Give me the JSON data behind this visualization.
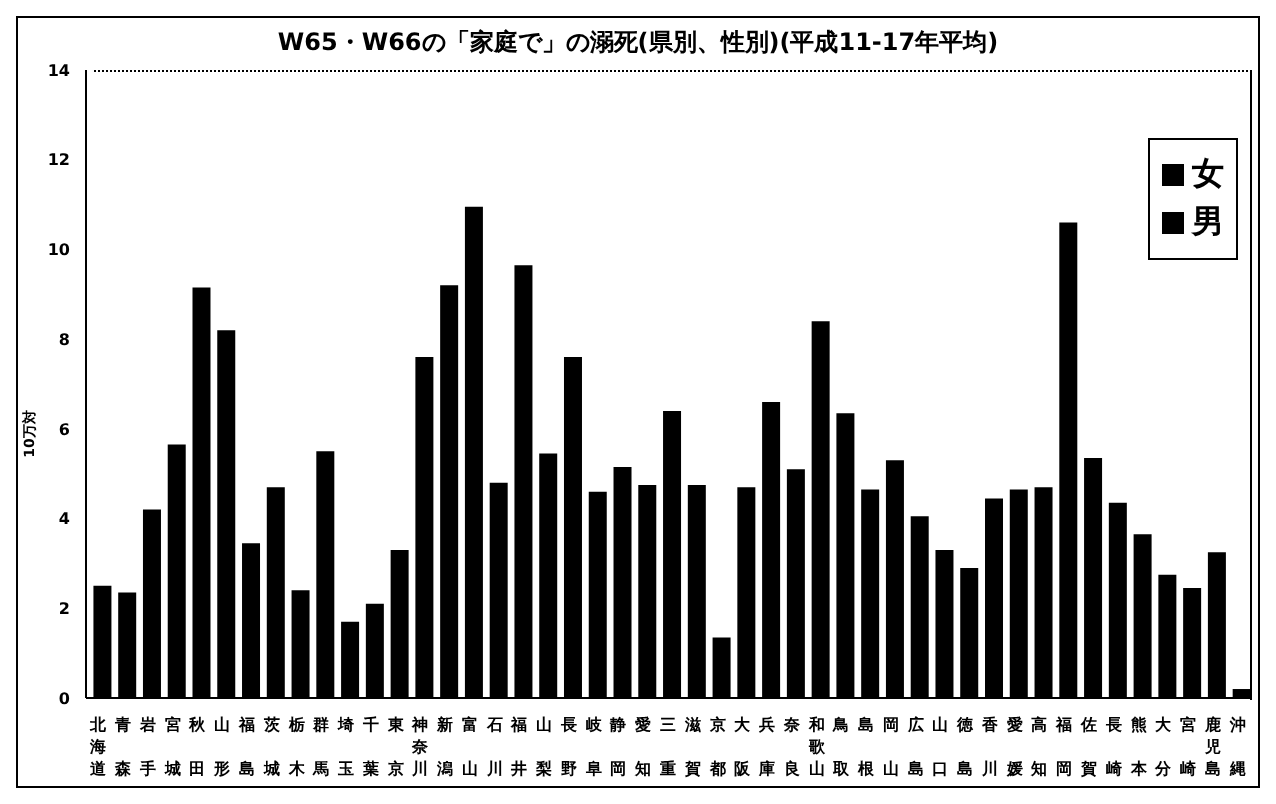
{
  "chart_data": {
    "type": "bar",
    "title": "W65・W66の「家庭で」の溺死(県別、性別)(平成11-17年平均)",
    "ylabel": "10万対",
    "categories": [
      "北海道",
      "青森",
      "岩手",
      "宮城",
      "秋田",
      "山形",
      "福島",
      "茨城",
      "栃木",
      "群馬",
      "埼玉",
      "千葉",
      "東京",
      "神奈川",
      "新潟",
      "富山",
      "石川",
      "福井",
      "山梨",
      "長野",
      "岐阜",
      "静岡",
      "愛知",
      "三重",
      "滋賀",
      "京都",
      "大阪",
      "兵庫",
      "奈良",
      "和歌山",
      "鳥取",
      "島根",
      "岡山",
      "広島",
      "山口",
      "徳島",
      "香川",
      "愛媛",
      "高知",
      "福岡",
      "佐賀",
      "長崎",
      "熊本",
      "大分",
      "宮崎",
      "鹿児島",
      "沖縄"
    ],
    "series": [
      {
        "name": "女",
        "color": "#000000",
        "values": [
          2.5,
          2.35,
          4.2,
          5.65,
          9.15,
          8.2,
          3.45,
          4.7,
          2.4,
          5.5,
          1.7,
          2.1,
          3.3,
          7.6,
          9.2,
          10.95,
          4.8,
          9.65,
          5.45,
          7.6,
          4.6,
          5.15,
          4.75,
          6.4,
          4.75,
          1.35,
          4.7,
          6.6,
          5.1,
          8.4,
          6.35,
          4.65,
          5.3,
          4.05,
          3.3,
          2.9,
          4.45,
          4.65,
          4.7,
          10.6,
          5.35,
          4.35,
          3.65,
          2.75,
          2.45,
          3.25,
          0.2
        ]
      },
      {
        "name": "男",
        "color": "#000000",
        "values": [
          null,
          null,
          null,
          null,
          null,
          null,
          null,
          null,
          null,
          null,
          null,
          null,
          null,
          null,
          null,
          null,
          null,
          null,
          null,
          null,
          null,
          null,
          null,
          null,
          null,
          null,
          null,
          null,
          null,
          null,
          null,
          null,
          null,
          null,
          null,
          null,
          null,
          null,
          null,
          null,
          null,
          null,
          null,
          null,
          null,
          null,
          null
        ]
      }
    ],
    "ylim": [
      0,
      14
    ],
    "yticks": [
      0,
      2,
      4,
      6,
      8,
      10,
      12,
      14
    ],
    "grid": false,
    "legend": "top right"
  }
}
